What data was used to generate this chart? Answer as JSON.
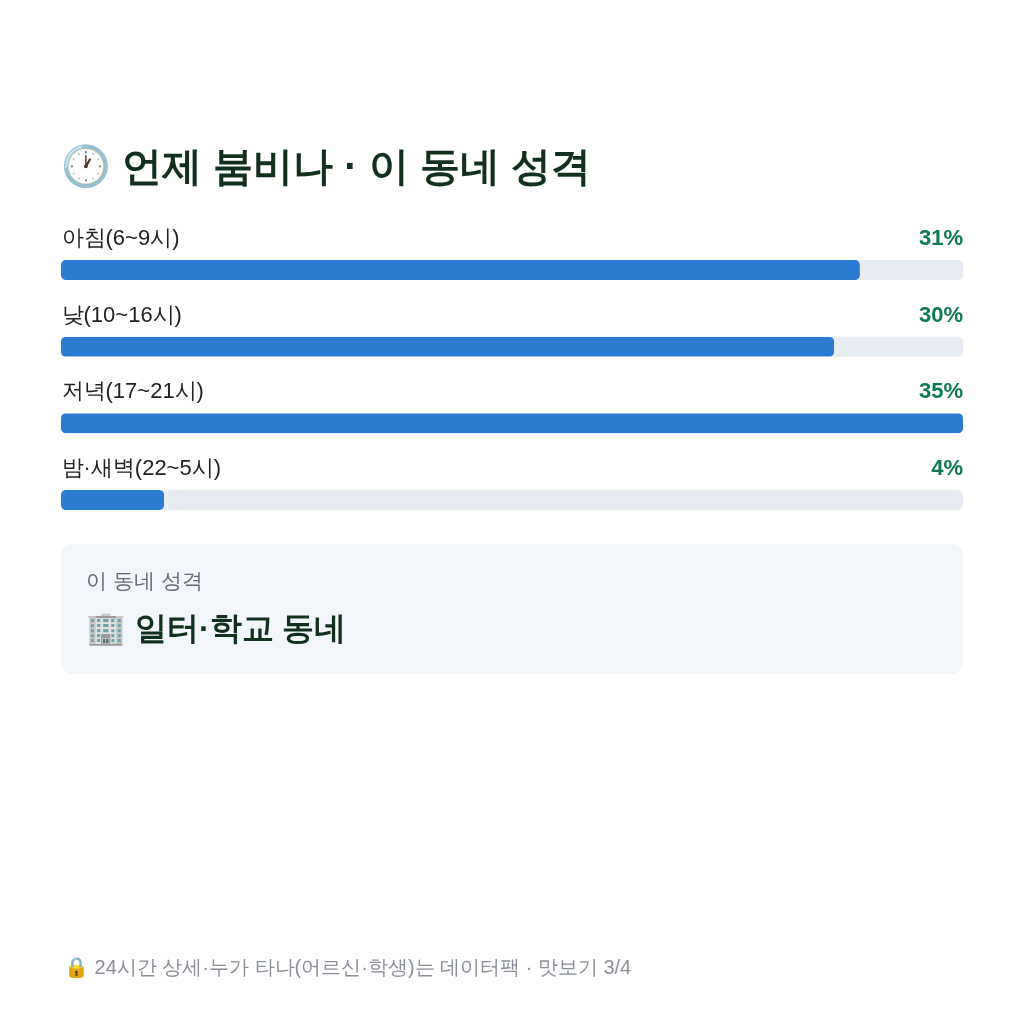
{
  "chart_data": {
    "type": "bar",
    "orientation": "horizontal",
    "title": "🕐 언제 붐비나 · 이 동네 성격",
    "categories": [
      "아침(6~9시)",
      "낮(10~16시)",
      "저녁(17~21시)",
      "밤·새벽(22~5시)"
    ],
    "values": [
      31,
      30,
      35,
      4
    ],
    "value_labels": [
      "31%",
      "30%",
      "35%",
      "4%"
    ],
    "color": "#2b7bd4",
    "xlim": [
      0,
      35
    ],
    "annotations": [
      "이 동네 성격",
      "🏢 일터·학교 동네",
      "🔒 24시간 상세·누가 타나(어르신·학생)는 데이터팩 · 맛보기 3/4"
    ]
  }
}
